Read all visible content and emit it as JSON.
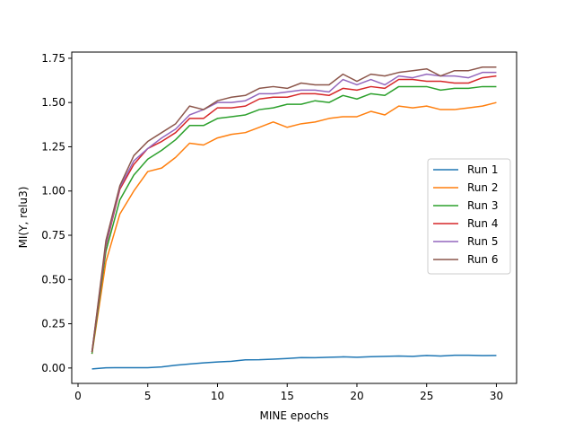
{
  "chart_data": {
    "type": "line",
    "title": "",
    "xlabel": "MINE epochs",
    "ylabel": "MI(Y, relu3)",
    "xlim": [
      -0.45,
      31.45
    ],
    "ylim": [
      -0.087,
      1.785
    ],
    "x_ticks": [
      0,
      5,
      10,
      15,
      20,
      25,
      30
    ],
    "y_ticks": [
      0.0,
      0.25,
      0.5,
      0.75,
      1.0,
      1.25,
      1.5,
      1.75
    ],
    "x_tick_labels": [
      "0",
      "5",
      "10",
      "15",
      "20",
      "25",
      "30"
    ],
    "y_tick_labels": [
      "0.00",
      "0.25",
      "0.50",
      "0.75",
      "1.00",
      "1.25",
      "1.50",
      "1.75"
    ],
    "grid": false,
    "legend_position": "center-right",
    "x": [
      1,
      2,
      3,
      4,
      5,
      6,
      7,
      8,
      9,
      10,
      11,
      12,
      13,
      14,
      15,
      16,
      17,
      18,
      19,
      20,
      21,
      22,
      23,
      24,
      25,
      26,
      27,
      28,
      29,
      30
    ],
    "series": [
      {
        "name": "Run 1",
        "color": "#1f77b4",
        "values": [
          -0.005,
          0.001,
          0.002,
          0.002,
          0.002,
          0.006,
          0.016,
          0.023,
          0.029,
          0.034,
          0.038,
          0.046,
          0.047,
          0.05,
          0.054,
          0.059,
          0.058,
          0.061,
          0.063,
          0.061,
          0.064,
          0.066,
          0.068,
          0.066,
          0.071,
          0.068,
          0.072,
          0.072,
          0.07,
          0.071
        ]
      },
      {
        "name": "Run 2",
        "color": "#ff7f0e",
        "values": [
          0.08,
          0.6,
          0.87,
          1.0,
          1.11,
          1.13,
          1.19,
          1.27,
          1.26,
          1.3,
          1.32,
          1.33,
          1.36,
          1.39,
          1.36,
          1.38,
          1.39,
          1.41,
          1.42,
          1.42,
          1.45,
          1.43,
          1.48,
          1.47,
          1.48,
          1.46,
          1.46,
          1.47,
          1.48,
          1.5
        ]
      },
      {
        "name": "Run 3",
        "color": "#2ca02c",
        "values": [
          0.08,
          0.66,
          0.95,
          1.09,
          1.18,
          1.23,
          1.29,
          1.37,
          1.37,
          1.41,
          1.42,
          1.43,
          1.46,
          1.47,
          1.49,
          1.49,
          1.51,
          1.5,
          1.54,
          1.52,
          1.55,
          1.54,
          1.59,
          1.59,
          1.59,
          1.57,
          1.58,
          1.58,
          1.59,
          1.59
        ]
      },
      {
        "name": "Run 4",
        "color": "#d62728",
        "values": [
          0.09,
          0.69,
          1.01,
          1.15,
          1.24,
          1.28,
          1.33,
          1.41,
          1.41,
          1.47,
          1.47,
          1.48,
          1.52,
          1.53,
          1.53,
          1.55,
          1.55,
          1.54,
          1.58,
          1.57,
          1.59,
          1.58,
          1.63,
          1.63,
          1.62,
          1.62,
          1.61,
          1.61,
          1.64,
          1.65
        ]
      },
      {
        "name": "Run 5",
        "color": "#9467bd",
        "values": [
          0.09,
          0.7,
          1.02,
          1.17,
          1.24,
          1.3,
          1.35,
          1.43,
          1.46,
          1.5,
          1.5,
          1.51,
          1.55,
          1.55,
          1.56,
          1.57,
          1.57,
          1.56,
          1.63,
          1.6,
          1.63,
          1.6,
          1.65,
          1.64,
          1.66,
          1.65,
          1.65,
          1.64,
          1.67,
          1.67
        ]
      },
      {
        "name": "Run 6",
        "color": "#8c564b",
        "values": [
          0.09,
          0.72,
          1.03,
          1.2,
          1.28,
          1.33,
          1.38,
          1.48,
          1.46,
          1.51,
          1.53,
          1.54,
          1.58,
          1.59,
          1.58,
          1.61,
          1.6,
          1.6,
          1.66,
          1.62,
          1.66,
          1.65,
          1.67,
          1.68,
          1.69,
          1.65,
          1.68,
          1.68,
          1.7,
          1.7
        ]
      }
    ]
  }
}
